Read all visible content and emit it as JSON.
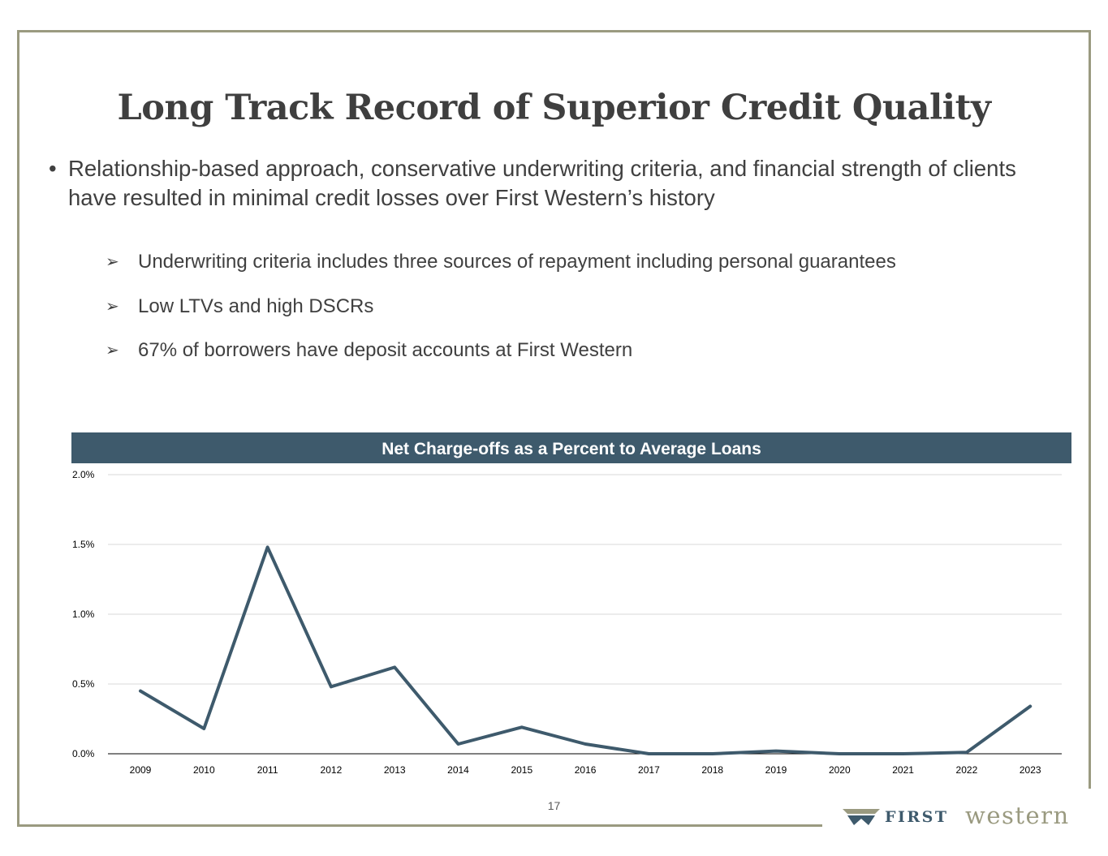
{
  "slide": {
    "title": "Long Track Record of Superior Credit Quality",
    "bullet": "Relationship-based approach, conservative underwriting criteria, and financial strength of clients have resulted in minimal credit losses over First Western’s history",
    "bullet_marker": "•",
    "sub_marker": "➢",
    "sub_bullets": [
      "Underwriting criteria includes three sources of repayment including personal guarantees",
      "Low LTVs and high DSCRs",
      "67% of borrowers have deposit accounts at First Western"
    ],
    "page_number": "17"
  },
  "logo": {
    "first": "FIRST",
    "western": "western",
    "icon": "first-western-w-icon",
    "colors": {
      "primary": "#3e5a6c",
      "secondary": "#9a9a80"
    }
  },
  "chart_data": {
    "type": "line",
    "title": "Net Charge-offs as a Percent to Average Loans",
    "categories": [
      "2009",
      "2010",
      "2011",
      "2012",
      "2013",
      "2014",
      "2015",
      "2016",
      "2017",
      "2018",
      "2019",
      "2020",
      "2021",
      "2022",
      "2023"
    ],
    "values": [
      0.45,
      0.18,
      1.48,
      0.48,
      0.62,
      0.07,
      0.19,
      0.07,
      0.0,
      0.0,
      0.02,
      0.0,
      0.0,
      0.01,
      0.34
    ],
    "ylim": [
      0,
      2.0
    ],
    "yticks": [
      0.0,
      0.5,
      1.0,
      1.5,
      2.0
    ],
    "ytick_labels": [
      "0.0%",
      "0.5%",
      "1.0%",
      "1.5%",
      "2.0%"
    ],
    "grid": true,
    "line_color": "#3e5a6c"
  }
}
